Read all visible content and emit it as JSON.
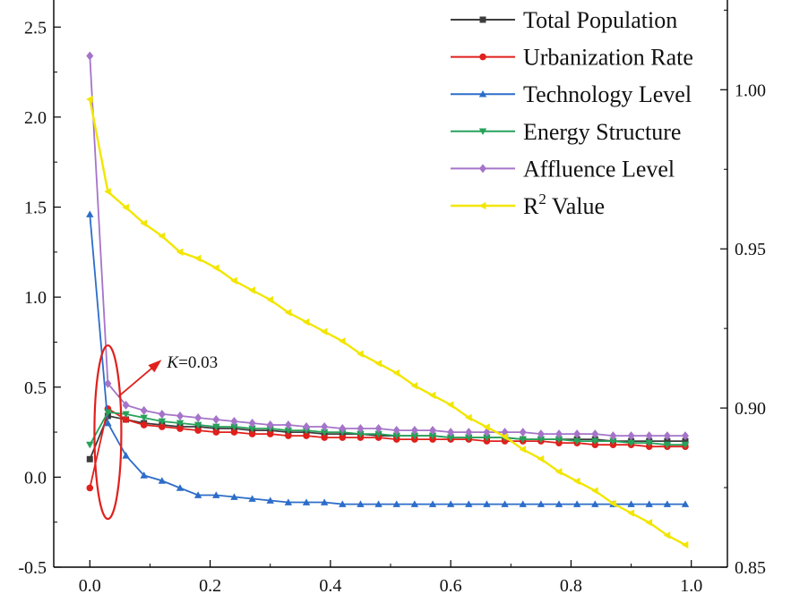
{
  "chart_data": {
    "type": "line",
    "title": "",
    "xlabel": "",
    "ylabel_left": "",
    "ylabel_right": "",
    "x": [
      0.0,
      0.03,
      0.06,
      0.09,
      0.12,
      0.15,
      0.18,
      0.21,
      0.24,
      0.27,
      0.3,
      0.33,
      0.36,
      0.39,
      0.42,
      0.45,
      0.48,
      0.51,
      0.54,
      0.57,
      0.6,
      0.63,
      0.66,
      0.69,
      0.72,
      0.75,
      0.78,
      0.81,
      0.84,
      0.87,
      0.9,
      0.93,
      0.96,
      0.99
    ],
    "x_ticks": [
      0.0,
      0.2,
      0.4,
      0.6,
      0.8,
      1.0
    ],
    "x_tick_labels": [
      "0.0",
      "0.2",
      "0.4",
      "0.6",
      "0.8",
      "1.0"
    ],
    "xlim": [
      -0.06,
      1.06
    ],
    "left_axis": {
      "ylim": [
        -0.5,
        2.7
      ],
      "ticks": [
        -0.5,
        0.0,
        0.5,
        1.0,
        1.5,
        2.0,
        2.5
      ],
      "tick_labels": [
        "-0.5",
        "0.0",
        "0.5",
        "1.0",
        "1.5",
        "2.0",
        "2.5"
      ]
    },
    "right_axis": {
      "ylim": [
        0.85,
        1.031
      ],
      "ticks": [
        0.85,
        0.9,
        0.95,
        1.0
      ],
      "tick_labels": [
        "0.85",
        "0.90",
        "0.95",
        "1.00"
      ]
    },
    "series": [
      {
        "name": "Total Population",
        "color": "#3d3d3d",
        "marker": "square",
        "axis": "left",
        "values": [
          0.1,
          0.34,
          0.32,
          0.3,
          0.29,
          0.28,
          0.28,
          0.27,
          0.27,
          0.26,
          0.26,
          0.25,
          0.25,
          0.24,
          0.24,
          0.24,
          0.23,
          0.23,
          0.23,
          0.23,
          0.22,
          0.22,
          0.22,
          0.22,
          0.21,
          0.21,
          0.21,
          0.21,
          0.21,
          0.2,
          0.2,
          0.2,
          0.2,
          0.2
        ]
      },
      {
        "name": "Urbanization Rate",
        "color": "#e0201c",
        "marker": "circle",
        "axis": "left",
        "values": [
          -0.06,
          0.38,
          0.32,
          0.29,
          0.28,
          0.27,
          0.26,
          0.25,
          0.25,
          0.24,
          0.24,
          0.23,
          0.23,
          0.22,
          0.22,
          0.22,
          0.22,
          0.21,
          0.21,
          0.21,
          0.21,
          0.21,
          0.2,
          0.2,
          0.2,
          0.2,
          0.19,
          0.19,
          0.18,
          0.18,
          0.18,
          0.17,
          0.17,
          0.17
        ]
      },
      {
        "name": "Technology Level",
        "color": "#2d6dc9",
        "marker": "triangle-up",
        "axis": "left",
        "values": [
          1.46,
          0.3,
          0.12,
          0.01,
          -0.02,
          -0.06,
          -0.1,
          -0.1,
          -0.11,
          -0.12,
          -0.13,
          -0.14,
          -0.14,
          -0.14,
          -0.15,
          -0.15,
          -0.15,
          -0.15,
          -0.15,
          -0.15,
          -0.15,
          -0.15,
          -0.15,
          -0.15,
          -0.15,
          -0.15,
          -0.15,
          -0.15,
          -0.15,
          -0.15,
          -0.15,
          -0.15,
          -0.15,
          -0.15
        ]
      },
      {
        "name": "Energy Structure",
        "color": "#27a25a",
        "marker": "triangle-down",
        "axis": "left",
        "values": [
          0.18,
          0.36,
          0.35,
          0.33,
          0.31,
          0.3,
          0.29,
          0.28,
          0.28,
          0.27,
          0.27,
          0.26,
          0.26,
          0.25,
          0.25,
          0.24,
          0.24,
          0.23,
          0.23,
          0.23,
          0.22,
          0.22,
          0.22,
          0.22,
          0.21,
          0.21,
          0.21,
          0.2,
          0.2,
          0.2,
          0.19,
          0.19,
          0.18,
          0.18
        ]
      },
      {
        "name": "Affluence Level",
        "color": "#a574c9",
        "marker": "diamond",
        "axis": "left",
        "values": [
          2.34,
          0.52,
          0.4,
          0.37,
          0.35,
          0.34,
          0.33,
          0.32,
          0.31,
          0.3,
          0.29,
          0.29,
          0.28,
          0.28,
          0.27,
          0.27,
          0.27,
          0.26,
          0.26,
          0.26,
          0.25,
          0.25,
          0.25,
          0.25,
          0.25,
          0.24,
          0.24,
          0.24,
          0.24,
          0.23,
          0.23,
          0.23,
          0.23,
          0.23
        ]
      },
      {
        "name": "R² Value",
        "name_base": "R",
        "name_sup": "2",
        "name_rest": " Value",
        "color": "#f2e600",
        "marker": "triangle-left",
        "axis": "right",
        "values": [
          0.997,
          0.968,
          0.963,
          0.958,
          0.954,
          0.949,
          0.947,
          0.944,
          0.94,
          0.937,
          0.934,
          0.93,
          0.927,
          0.924,
          0.921,
          0.917,
          0.914,
          0.911,
          0.907,
          0.904,
          0.901,
          0.897,
          0.894,
          0.891,
          0.887,
          0.884,
          0.88,
          0.877,
          0.874,
          0.87,
          0.867,
          0.864,
          0.86,
          0.857
        ]
      }
    ],
    "legend_position": "top-right",
    "annotation": {
      "k_label": "K",
      "k_value": "=0.03",
      "ellipse_color": "#e0201c",
      "target_x": 0.03,
      "target_y": 0.25
    }
  }
}
